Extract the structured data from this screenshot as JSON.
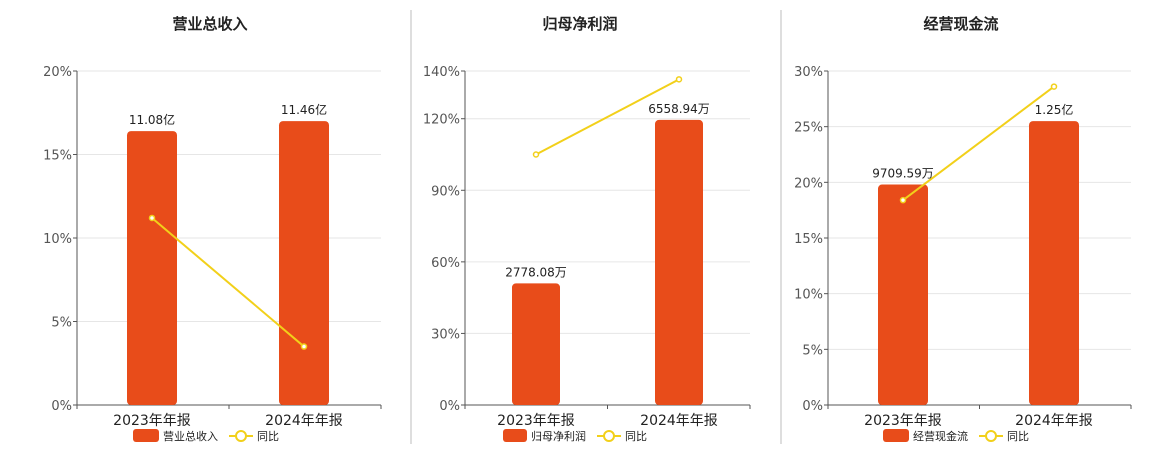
{
  "colors": {
    "bar": "#E84C1A",
    "line": "#F2D01A",
    "grid": "#E6E6E6",
    "axis": "#555555",
    "divider": "#BDBDBD",
    "text": "#222222",
    "title": "#222222"
  },
  "chart_data": [
    {
      "type": "bar",
      "title": "营业总收入",
      "categories": [
        "2023年年报",
        "2024年年报"
      ],
      "ylim": [
        0,
        20
      ],
      "yticks": [
        0,
        5,
        10,
        15,
        20
      ],
      "ytick_labels": [
        "0%",
        "5%",
        "10%",
        "15%",
        "20%"
      ],
      "series": [
        {
          "name": "营业总收入",
          "type": "bar",
          "values": [
            16.4,
            17.0
          ],
          "labels": [
            "11.08亿",
            "11.46亿"
          ]
        },
        {
          "name": "同比",
          "type": "line",
          "values": [
            11.2,
            3.5
          ]
        }
      ],
      "legend": "bottom-center",
      "grid": true
    },
    {
      "type": "bar",
      "title": "归母净利润",
      "categories": [
        "2023年年报",
        "2024年年报"
      ],
      "ylim": [
        0,
        140
      ],
      "yticks": [
        0,
        30,
        60,
        90,
        120,
        140
      ],
      "ytick_labels": [
        "0%",
        "30%",
        "60%",
        "90%",
        "120%",
        "140%"
      ],
      "series": [
        {
          "name": "归母净利润",
          "type": "bar",
          "values": [
            51,
            119.5
          ],
          "labels": [
            "2778.08万",
            "6558.94万"
          ]
        },
        {
          "name": "同比",
          "type": "line",
          "values": [
            105,
            136.5
          ]
        }
      ],
      "legend": "bottom-center",
      "grid": true
    },
    {
      "type": "bar",
      "title": "经营现金流",
      "categories": [
        "2023年年报",
        "2024年年报"
      ],
      "ylim": [
        0,
        30
      ],
      "yticks": [
        0,
        5,
        10,
        15,
        20,
        25,
        30
      ],
      "ytick_labels": [
        "0%",
        "5%",
        "10%",
        "15%",
        "20%",
        "25%",
        "30%"
      ],
      "series": [
        {
          "name": "经营现金流",
          "type": "bar",
          "values": [
            19.8,
            25.5
          ],
          "labels": [
            "9709.59万",
            "1.25亿"
          ]
        },
        {
          "name": "同比",
          "type": "line",
          "values": [
            18.4,
            28.6
          ]
        }
      ],
      "legend": "bottom-center",
      "grid": true
    }
  ]
}
